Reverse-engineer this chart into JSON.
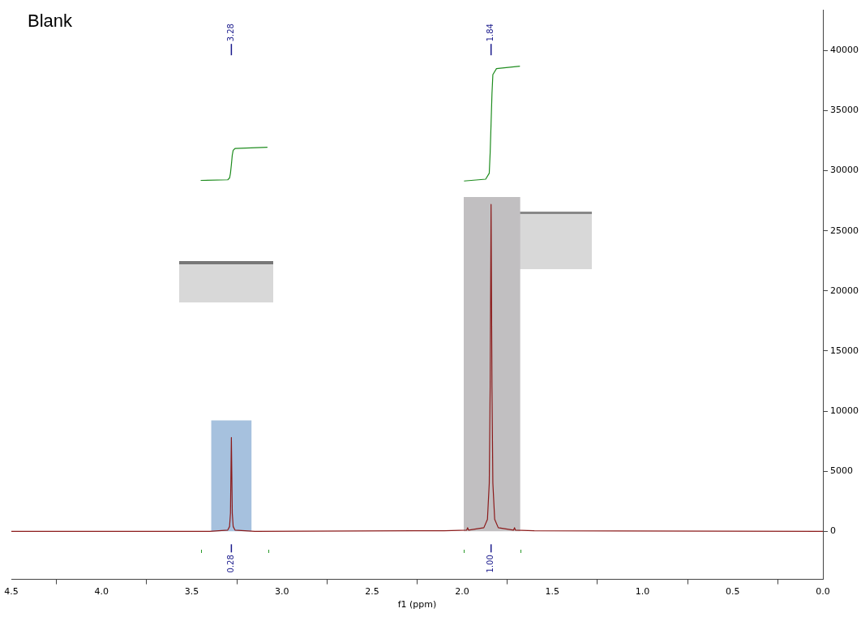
{
  "chart_data": {
    "type": "line",
    "title": "Blank",
    "xlabel": "f1 (ppm)",
    "xlim": [
      4.5,
      0
    ],
    "ylim": [
      -4000,
      43400
    ],
    "xticks": [
      {
        "value": 4.5,
        "label": "4.5"
      },
      {
        "value": 4,
        "label": "4.0"
      },
      {
        "value": 3.5,
        "label": "3.5"
      },
      {
        "value": 3,
        "label": "3.0"
      },
      {
        "value": 2.5,
        "label": "2.5"
      },
      {
        "value": 2,
        "label": "2.0"
      },
      {
        "value": 1.5,
        "label": "1.5"
      },
      {
        "value": 1,
        "label": "1.0"
      },
      {
        "value": 0.5,
        "label": "0.5"
      },
      {
        "value": 0,
        "label": "0.0"
      }
    ],
    "yticks": [
      0,
      5000,
      10000,
      15000,
      20000,
      25000,
      30000,
      35000,
      40000
    ],
    "grid": false,
    "legend": false,
    "marker": "none",
    "line_style": "solid",
    "tick_labels": "xy",
    "series": [
      {
        "type": "bar",
        "color": "#a6c1de",
        "x": [
          3.28
        ],
        "values": [
          9200
        ]
      },
      {
        "type": "bar",
        "color": "#c1bfc1",
        "x": [
          1.835
        ],
        "values": [
          27800
        ]
      },
      {
        "color": "#8b1a1a",
        "x": [
          4.5,
          3.4,
          3.3,
          3.29,
          3.285,
          3.28,
          3.275,
          3.27,
          3.26,
          3.15,
          2.1,
          1.975,
          1.97,
          1.965,
          1.88,
          1.86,
          1.85,
          1.845,
          1.84,
          1.835,
          1.83,
          1.82,
          1.8,
          1.715,
          1.71,
          1.705,
          1.6,
          0
        ],
        "values": [
          0,
          0,
          100,
          400,
          1500,
          7800,
          1500,
          400,
          100,
          0,
          50,
          100,
          300,
          100,
          300,
          1000,
          4000,
          12000,
          27200,
          12000,
          4000,
          1000,
          300,
          100,
          300,
          100,
          50,
          0
        ]
      },
      {
        "color": "#1e8c1e",
        "x": [
          3.45,
          3.3,
          3.29,
          3.285,
          3.28,
          3.275,
          3.27,
          3.26,
          3.08
        ],
        "values": [
          29200,
          29250,
          29400,
          29800,
          30500,
          31300,
          31700,
          31850,
          31950
        ]
      },
      {
        "color": "#1e8c1e",
        "x": [
          1.99,
          1.87,
          1.85,
          1.845,
          1.84,
          1.835,
          1.83,
          1.81,
          1.68
        ],
        "values": [
          29150,
          29300,
          29800,
          31500,
          33900,
          36400,
          38000,
          38500,
          38700
        ]
      }
    ],
    "annotations": [
      "3.28",
      "1.84",
      "0.28",
      "1.00"
    ]
  }
}
